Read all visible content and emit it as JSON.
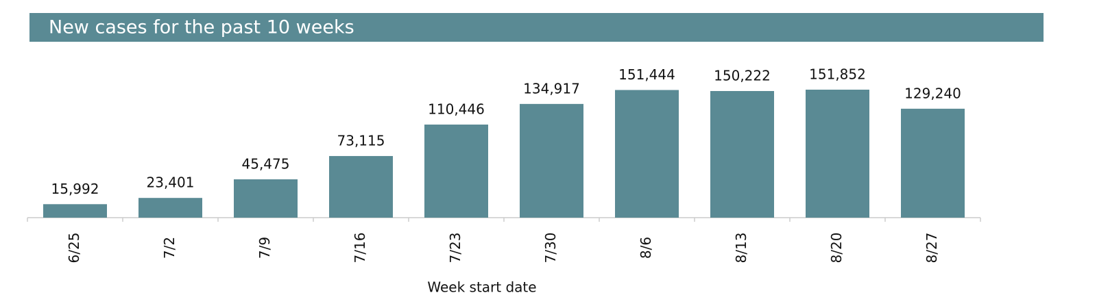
{
  "chart_data": {
    "type": "bar",
    "title": "New cases for the past 10 weeks",
    "x_label": "Week start date",
    "categories": [
      "6/25",
      "7/2",
      "7/9",
      "7/16",
      "7/23",
      "7/30",
      "8/6",
      "8/13",
      "8/20",
      "8/27"
    ],
    "values": [
      15992,
      23401,
      45475,
      73115,
      110446,
      134917,
      151444,
      150222,
      151852,
      129240
    ],
    "value_labels": [
      "15,992",
      "23,401",
      "45,475",
      "73,115",
      "110,446",
      "134,917",
      "151,444",
      "150,222",
      "151,852",
      "129,240"
    ],
    "color": "#5a8a94"
  }
}
